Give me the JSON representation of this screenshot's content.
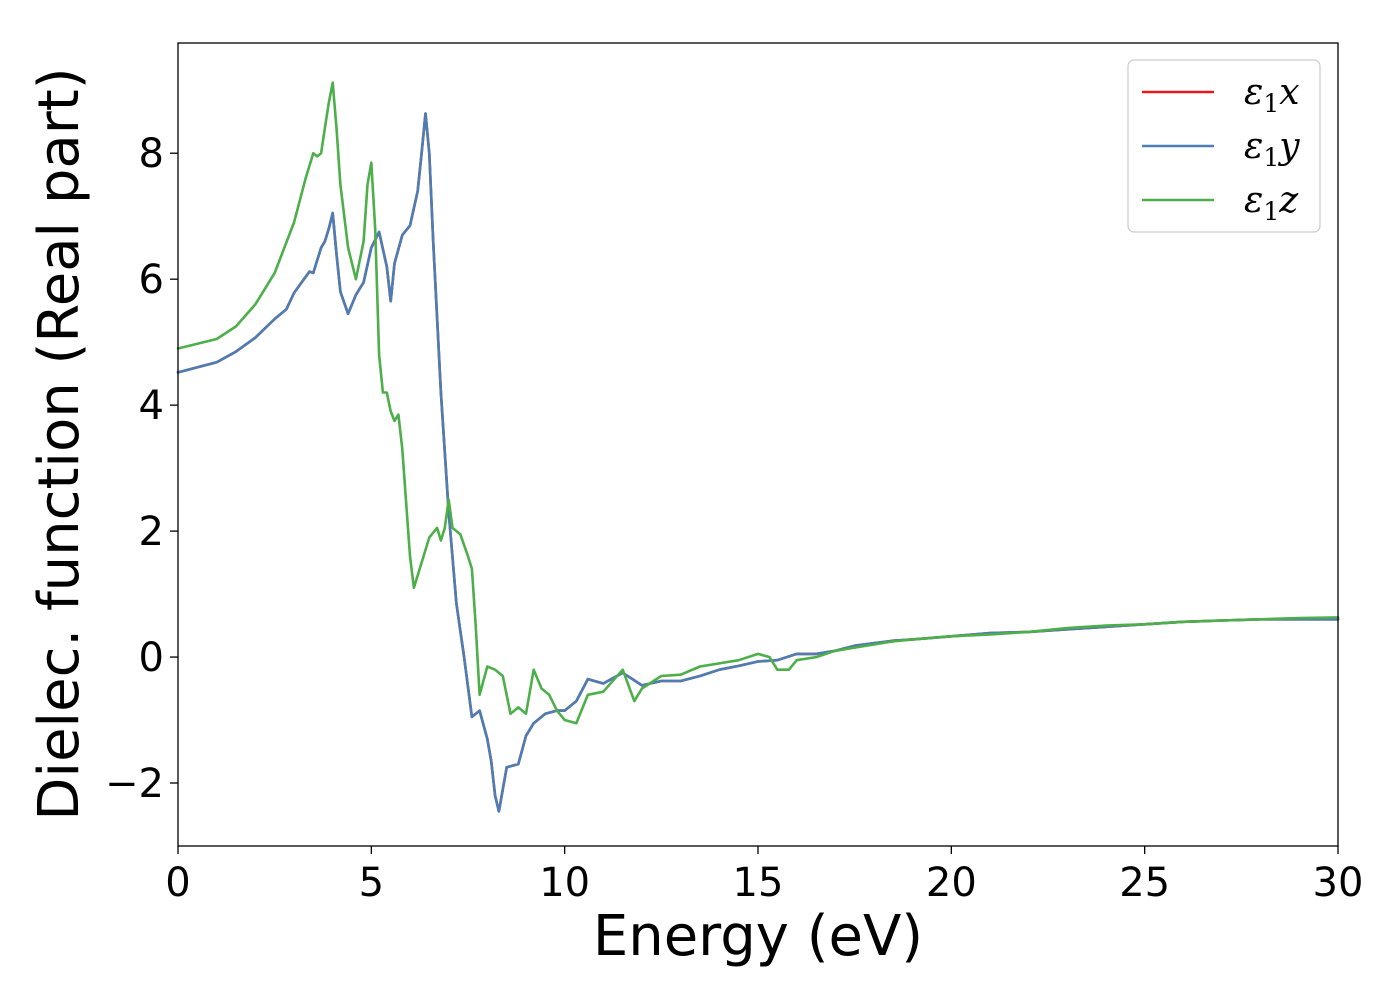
{
  "chart_data": {
    "type": "line",
    "title": "",
    "xlabel": "Energy (eV)",
    "ylabel": "Dielec. function (Real part)",
    "xlim": [
      0,
      30
    ],
    "ylim": [
      -3.0,
      9.75
    ],
    "xticks": [
      0,
      5,
      10,
      15,
      20,
      25,
      30
    ],
    "xtick_labels": [
      "0",
      "5",
      "10",
      "15",
      "20",
      "25",
      "30"
    ],
    "yticks": [
      -2,
      0,
      2,
      4,
      6,
      8
    ],
    "ytick_labels": [
      "−2",
      "0",
      "2",
      "4",
      "6",
      "8"
    ],
    "grid": false,
    "legend_position": "top-right",
    "series": [
      {
        "name": "ε1x",
        "legend_base": "ε",
        "legend_sub": "1",
        "legend_axis": "x",
        "color": "#e41a1c",
        "x": [
          0,
          1,
          1.5,
          2,
          2.5,
          2.8,
          3.0,
          3.2,
          3.4,
          3.5,
          3.6,
          3.7,
          3.8,
          3.9,
          4.0,
          4.1,
          4.2,
          4.4,
          4.6,
          4.8,
          5.0,
          5.2,
          5.4,
          5.5,
          5.6,
          5.8,
          6.0,
          6.2,
          6.3,
          6.4,
          6.5,
          6.6,
          6.8,
          7.0,
          7.2,
          7.4,
          7.6,
          7.8,
          8.0,
          8.1,
          8.2,
          8.3,
          8.5,
          8.8,
          9.0,
          9.2,
          9.5,
          9.8,
          10.0,
          10.3,
          10.6,
          11.0,
          11.5,
          12.0,
          12.5,
          13.0,
          13.5,
          14.0,
          14.5,
          15.0,
          15.5,
          16.0,
          16.5,
          17.0,
          17.5,
          18.0,
          18.5,
          19.0,
          20.0,
          21.0,
          22.0,
          23.0,
          24.0,
          25.0,
          26.0,
          27.0,
          28.0,
          29.0,
          30.0
        ],
        "y": [
          4.52,
          4.68,
          4.85,
          5.07,
          5.37,
          5.52,
          5.78,
          5.95,
          6.12,
          6.1,
          6.3,
          6.5,
          6.6,
          6.8,
          7.05,
          6.4,
          5.8,
          5.45,
          5.75,
          5.95,
          6.5,
          6.75,
          6.2,
          5.65,
          6.25,
          6.7,
          6.85,
          7.4,
          8.0,
          8.63,
          8.0,
          6.6,
          4.2,
          2.3,
          0.85,
          0.0,
          -0.95,
          -0.85,
          -1.3,
          -1.65,
          -2.2,
          -2.45,
          -1.75,
          -1.7,
          -1.25,
          -1.05,
          -0.9,
          -0.85,
          -0.85,
          -0.7,
          -0.35,
          -0.42,
          -0.25,
          -0.45,
          -0.38,
          -0.38,
          -0.3,
          -0.2,
          -0.14,
          -0.07,
          -0.05,
          0.05,
          0.05,
          0.1,
          0.18,
          0.22,
          0.26,
          0.28,
          0.33,
          0.38,
          0.4,
          0.44,
          0.48,
          0.52,
          0.56,
          0.58,
          0.6,
          0.6,
          0.6
        ]
      },
      {
        "name": "ε1y",
        "legend_base": "ε",
        "legend_sub": "1",
        "legend_axis": "y",
        "color": "#4a7eb4",
        "x": [
          0,
          1,
          1.5,
          2,
          2.5,
          2.8,
          3.0,
          3.2,
          3.4,
          3.5,
          3.6,
          3.7,
          3.8,
          3.9,
          4.0,
          4.1,
          4.2,
          4.4,
          4.6,
          4.8,
          5.0,
          5.2,
          5.4,
          5.5,
          5.6,
          5.8,
          6.0,
          6.2,
          6.3,
          6.4,
          6.5,
          6.6,
          6.8,
          7.0,
          7.2,
          7.4,
          7.6,
          7.8,
          8.0,
          8.1,
          8.2,
          8.3,
          8.5,
          8.8,
          9.0,
          9.2,
          9.5,
          9.8,
          10.0,
          10.3,
          10.6,
          11.0,
          11.5,
          12.0,
          12.5,
          13.0,
          13.5,
          14.0,
          14.5,
          15.0,
          15.5,
          16.0,
          16.5,
          17.0,
          17.5,
          18.0,
          18.5,
          19.0,
          20.0,
          21.0,
          22.0,
          23.0,
          24.0,
          25.0,
          26.0,
          27.0,
          28.0,
          29.0,
          30.0
        ],
        "y": [
          4.52,
          4.68,
          4.85,
          5.07,
          5.37,
          5.52,
          5.78,
          5.95,
          6.12,
          6.1,
          6.3,
          6.5,
          6.6,
          6.8,
          7.05,
          6.4,
          5.8,
          5.45,
          5.75,
          5.95,
          6.5,
          6.75,
          6.2,
          5.65,
          6.25,
          6.7,
          6.85,
          7.4,
          8.0,
          8.63,
          8.0,
          6.6,
          4.2,
          2.3,
          0.85,
          0.0,
          -0.95,
          -0.85,
          -1.3,
          -1.65,
          -2.2,
          -2.45,
          -1.75,
          -1.7,
          -1.25,
          -1.05,
          -0.9,
          -0.85,
          -0.85,
          -0.7,
          -0.35,
          -0.42,
          -0.25,
          -0.45,
          -0.38,
          -0.38,
          -0.3,
          -0.2,
          -0.14,
          -0.07,
          -0.05,
          0.05,
          0.05,
          0.1,
          0.18,
          0.22,
          0.26,
          0.28,
          0.33,
          0.38,
          0.4,
          0.44,
          0.48,
          0.52,
          0.56,
          0.58,
          0.6,
          0.6,
          0.6
        ]
      },
      {
        "name": "ε1z",
        "legend_base": "ε",
        "legend_sub": "1",
        "legend_axis": "z",
        "color": "#4daf4a",
        "x": [
          0,
          1,
          1.5,
          2,
          2.5,
          3.0,
          3.3,
          3.5,
          3.6,
          3.7,
          3.8,
          3.9,
          4.0,
          4.1,
          4.2,
          4.4,
          4.6,
          4.8,
          4.9,
          5.0,
          5.1,
          5.2,
          5.3,
          5.4,
          5.5,
          5.6,
          5.7,
          5.8,
          6.0,
          6.1,
          6.3,
          6.5,
          6.7,
          6.8,
          6.9,
          7.0,
          7.1,
          7.3,
          7.5,
          7.6,
          7.7,
          7.8,
          8.0,
          8.2,
          8.4,
          8.6,
          8.8,
          9.0,
          9.2,
          9.4,
          9.6,
          9.8,
          10.0,
          10.3,
          10.6,
          11.0,
          11.5,
          11.8,
          12.0,
          12.5,
          13.0,
          13.5,
          14.0,
          14.5,
          15.0,
          15.3,
          15.5,
          15.8,
          16.0,
          16.5,
          17.0,
          17.5,
          18.0,
          18.5,
          19.0,
          20.0,
          21.0,
          22.0,
          23.0,
          24.0,
          25.0,
          26.0,
          27.0,
          28.0,
          29.0,
          30.0
        ],
        "y": [
          4.9,
          5.05,
          5.25,
          5.6,
          6.1,
          6.9,
          7.6,
          8.0,
          7.95,
          8.0,
          8.4,
          8.8,
          9.12,
          8.4,
          7.5,
          6.5,
          6.0,
          6.6,
          7.5,
          7.85,
          6.8,
          4.8,
          4.2,
          4.2,
          3.9,
          3.75,
          3.85,
          3.3,
          1.6,
          1.1,
          1.5,
          1.9,
          2.05,
          1.85,
          2.05,
          2.5,
          2.05,
          1.95,
          1.6,
          1.4,
          0.5,
          -0.6,
          -0.15,
          -0.2,
          -0.3,
          -0.9,
          -0.8,
          -0.9,
          -0.2,
          -0.5,
          -0.6,
          -0.85,
          -1.0,
          -1.05,
          -0.6,
          -0.55,
          -0.2,
          -0.7,
          -0.5,
          -0.3,
          -0.28,
          -0.15,
          -0.1,
          -0.05,
          0.05,
          0.0,
          -0.2,
          -0.2,
          -0.05,
          0.0,
          0.1,
          0.15,
          0.2,
          0.25,
          0.28,
          0.33,
          0.36,
          0.4,
          0.46,
          0.5,
          0.52,
          0.56,
          0.58,
          0.6,
          0.62,
          0.63
        ]
      }
    ]
  }
}
